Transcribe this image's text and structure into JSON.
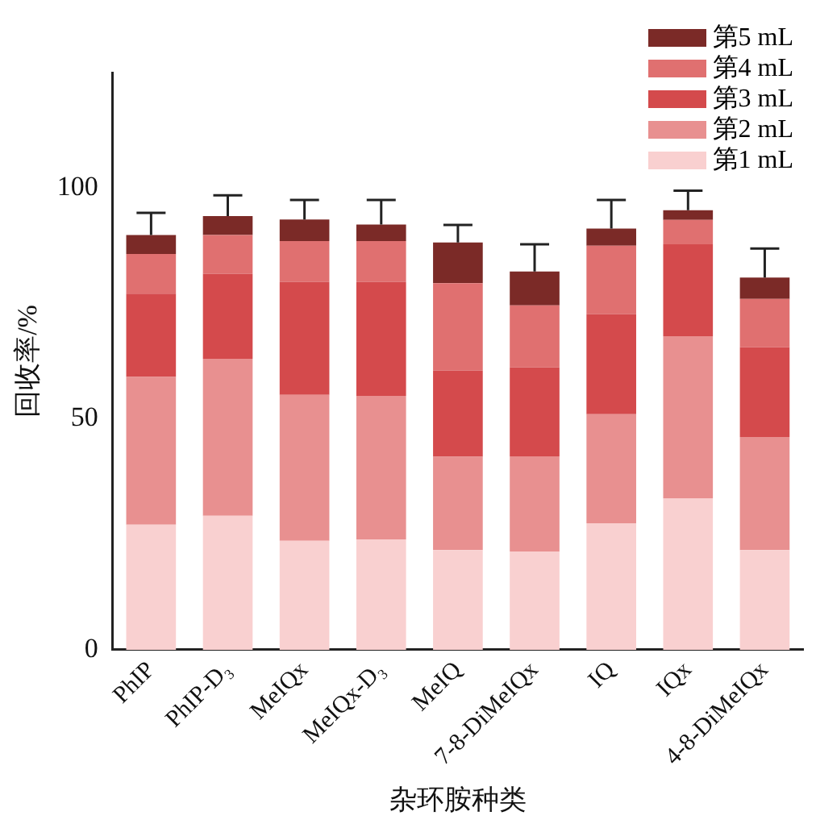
{
  "chart_data": {
    "type": "bar",
    "stacked": true,
    "xlabel": "杂环胺种类",
    "ylabel": "回收率/%",
    "categories": [
      "PhIP",
      "PhIP-D₃",
      "MeIQx",
      "MeIQx-D₃",
      "MeIQ",
      "7-8-DiMeIQx",
      "IQ",
      "IQx",
      "4-8-DiMeIQx"
    ],
    "series": [
      {
        "name": "第1 mL",
        "color": "#f9d0d0",
        "values": [
          27.1,
          29.0,
          23.6,
          23.9,
          21.6,
          21.3,
          27.4,
          32.8,
          21.6
        ]
      },
      {
        "name": "第2 mL",
        "color": "#e89090",
        "values": [
          32.0,
          34.0,
          31.6,
          31.1,
          20.2,
          20.6,
          23.6,
          35.1,
          24.5
        ]
      },
      {
        "name": "第3 mL",
        "color": "#d44a4c",
        "values": [
          18.0,
          18.4,
          24.5,
          24.7,
          18.7,
          19.3,
          21.7,
          19.9,
          19.4
        ]
      },
      {
        "name": "第4 mL",
        "color": "#e07070",
        "values": [
          8.6,
          8.4,
          8.8,
          8.8,
          18.9,
          13.4,
          14.8,
          5.3,
          10.5
        ]
      },
      {
        "name": "第5 mL",
        "color": "#7b2a27",
        "values": [
          4.1,
          4.1,
          4.7,
          3.6,
          8.8,
          7.3,
          3.7,
          2.1,
          4.6
        ],
        "errors": [
          4.8,
          4.5,
          4.2,
          5.3,
          3.8,
          5.9,
          6.2,
          4.2,
          6.3
        ]
      }
    ],
    "ylim": [
      0,
      125
    ],
    "yticks": [
      0,
      50,
      100
    ],
    "grid": false,
    "legend": "top right"
  }
}
